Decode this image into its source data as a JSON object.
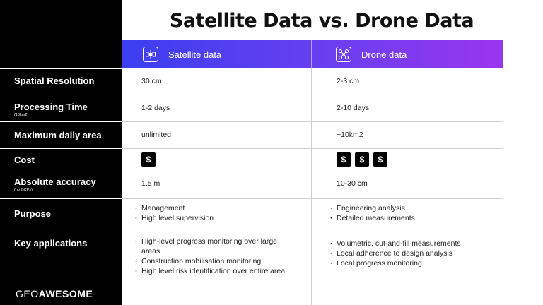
{
  "title": "Satellite Data vs. Drone Data",
  "columns": {
    "satellite": {
      "label": "Satellite data",
      "icon": "satellite-icon"
    },
    "drone": {
      "label": "Drone data",
      "icon": "drone-icon"
    }
  },
  "rows": {
    "spatial": {
      "label": "Spatial Resolution",
      "satellite": "30 cm",
      "drone": "2-3 cm"
    },
    "processing": {
      "label": "Processing Time",
      "sublabel": "(10km2)",
      "satellite": "1-2 days",
      "drone": "2-10 days"
    },
    "area": {
      "label": "Maximum daily area",
      "satellite": "unlimited",
      "drone": "~10km2"
    },
    "cost": {
      "label": "Cost",
      "symbol": "$",
      "satellite_count": 1,
      "drone_count": 3
    },
    "accuracy": {
      "label": "Absolute accuracy",
      "sublabel": "(no GCPs)",
      "satellite": "1.5 m",
      "drone": "10-30 cm"
    },
    "purpose": {
      "label": "Purpose",
      "satellite": [
        "Management",
        "High level supervision"
      ],
      "drone": [
        "Engineering analysis",
        "Detailed measurements"
      ]
    },
    "applications": {
      "label": "Key applications",
      "satellite": [
        "High-level progress monitoring over large areas",
        "Construction mobilisation monitoring",
        "High level risk identification over entire area"
      ],
      "drone": [
        "Volumetric, cut-and-fill measurements",
        "Local adherence to design analysis",
        "Local progress monitoring"
      ]
    }
  },
  "logo": {
    "part1": "GEO",
    "part2": "AWESOME"
  },
  "colors": {
    "gradient_start": "#3b3ff0",
    "gradient_end": "#9a35ee",
    "sidebar": "#000000"
  }
}
